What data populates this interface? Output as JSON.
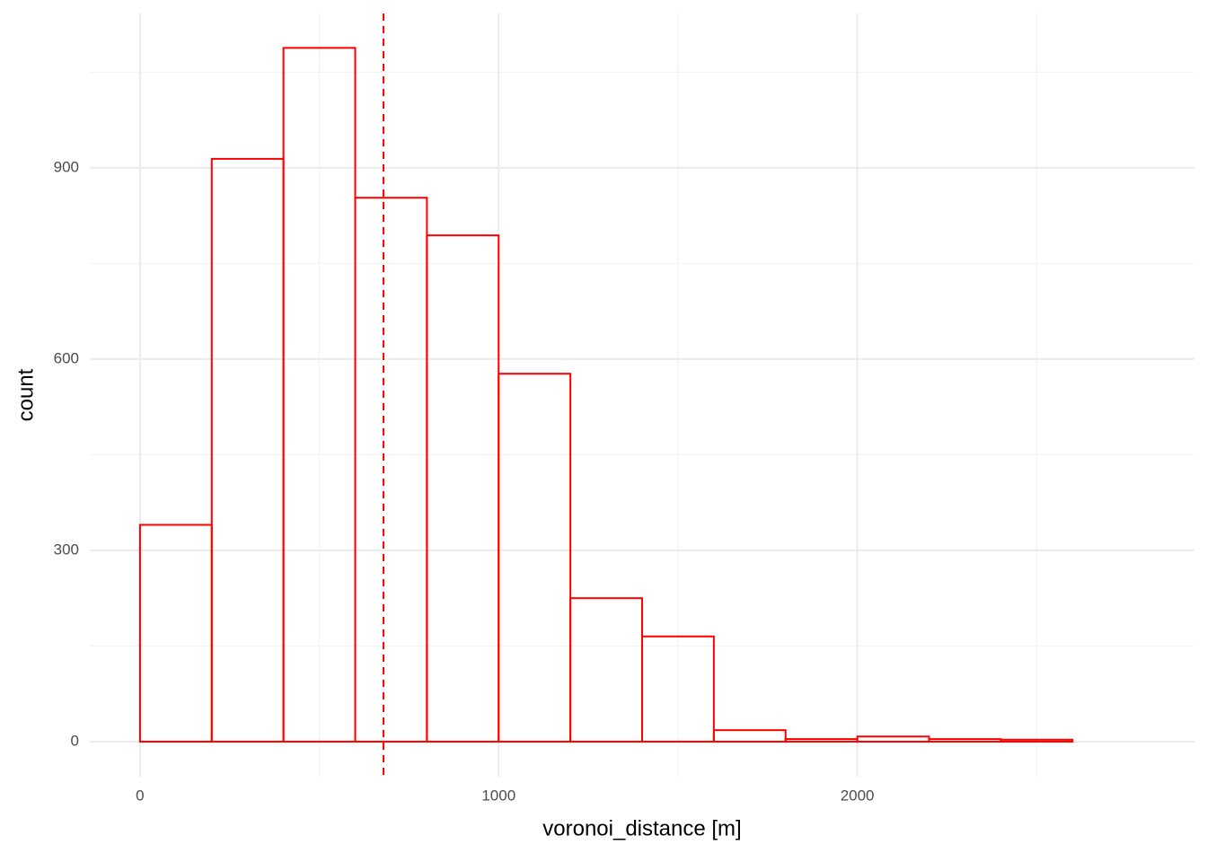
{
  "chart_data": {
    "type": "histogram",
    "x_label": "voronoi_distance [m]",
    "y_label": "count",
    "bins": [
      0,
      200,
      400,
      600,
      800,
      1000,
      1200,
      1400,
      1600,
      1800,
      2000,
      2200,
      2400,
      2600,
      2800
    ],
    "counts": [
      340,
      914,
      1088,
      853,
      794,
      577,
      225,
      165,
      18,
      4,
      8,
      4,
      3,
      0
    ],
    "color": "#ff0000",
    "vline": 679,
    "vline_color": "#ff0000",
    "vline_style": "dashed",
    "xlim": [
      -140,
      2940
    ],
    "ylim": [
      -55,
      1142
    ],
    "xticks": [
      0,
      1000,
      2000
    ],
    "yticks": [
      0,
      300,
      600,
      900
    ],
    "x_minor_ticks": [
      500,
      1500,
      2500
    ],
    "y_minor_ticks": [
      150,
      450,
      750,
      1050
    ],
    "grid": true
  }
}
